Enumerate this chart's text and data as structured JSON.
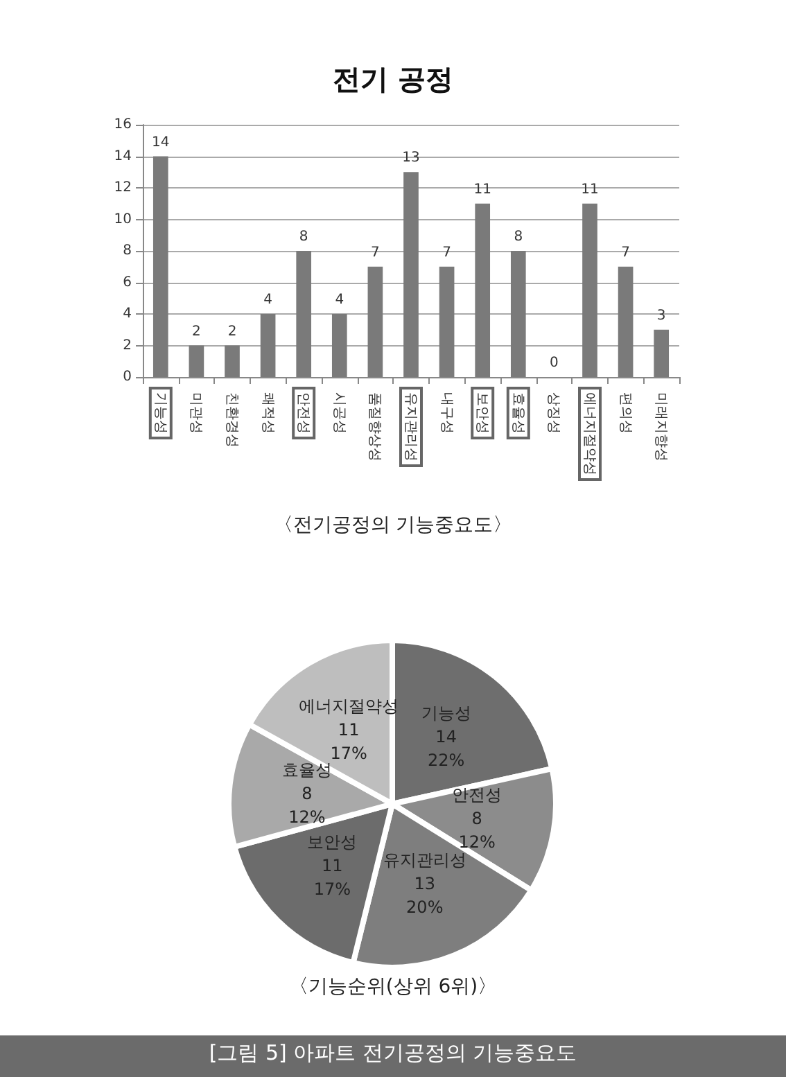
{
  "chart_data": [
    {
      "type": "bar",
      "title": "전기 공정",
      "categories": [
        "기능성",
        "미관성",
        "친환경성",
        "쾌적성",
        "안전성",
        "시공성",
        "품질향상성",
        "유지관리성",
        "내구성",
        "보안성",
        "효율성",
        "상징성",
        "에너지절약성",
        "편의성",
        "미래지향성"
      ],
      "values": [
        14,
        2,
        2,
        4,
        8,
        4,
        7,
        13,
        7,
        11,
        8,
        0,
        11,
        7,
        3
      ],
      "color": "#7a7a7a",
      "ylim": [
        0,
        16
      ],
      "yticks": [
        0,
        2,
        4,
        6,
        8,
        10,
        12,
        14,
        16
      ],
      "grid": "y",
      "data_labels": true,
      "annotations": [
        "〈전기공정의 기능중요도〉"
      ]
    },
    {
      "type": "pie",
      "categories": [
        "기능성",
        "안전성",
        "유지관리성",
        "보안성",
        "효율성",
        "에너지절약성"
      ],
      "values": [
        14,
        8,
        13,
        11,
        8,
        11
      ],
      "colors": [
        "#6e6e6e",
        "#8c8c8c",
        "#7e7e7e",
        "#6c6c6c",
        "#a9a9a9",
        "#bebebe"
      ],
      "data_labels": true,
      "value_labels": [
        "14\n22%",
        "8\n12%",
        "13\n20%",
        "11\n17%",
        "8\n12%",
        "11\n17%"
      ],
      "annotations": [
        "〈기능순위(상위 6위)〉",
        "[그림 5] 아파트 전기공정의 기능중요도"
      ]
    }
  ]
}
